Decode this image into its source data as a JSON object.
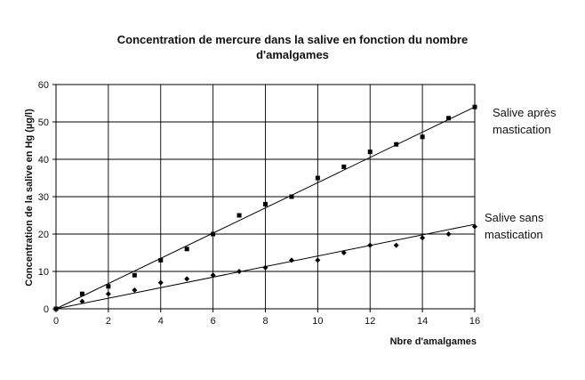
{
  "chart_data": {
    "type": "scatter",
    "title_line1": "Concentration de mercure dans la salive en fonction du nombre",
    "title_line2": "d'amalgames",
    "xlabel": "Nbre d'amalgames",
    "ylabel": "Concentration de la salive en Hg (µg/l)",
    "xlim": [
      0,
      16
    ],
    "ylim": [
      0,
      60
    ],
    "x_ticks": [
      "0",
      "2",
      "4",
      "6",
      "8",
      "10",
      "12",
      "14",
      "16"
    ],
    "y_ticks": [
      "0",
      "10",
      "20",
      "30",
      "40",
      "50",
      "60"
    ],
    "grid": true,
    "legend": "none",
    "annotations": {
      "apres_line1": "Salive après",
      "apres_line2": "mastication",
      "sans_line1": "Salive sans",
      "sans_line2": "mastication"
    },
    "series": [
      {
        "marker": "square",
        "x": [
          0,
          1,
          2,
          3,
          4,
          5,
          6,
          7,
          8,
          9,
          10,
          11,
          12,
          13,
          14,
          15,
          16
        ],
        "y": [
          0,
          4,
          6,
          9,
          13,
          16,
          20,
          25,
          28,
          30,
          35,
          38,
          42,
          44,
          46,
          51,
          54
        ],
        "trend": [
          [
            0,
            0
          ],
          [
            16,
            54
          ]
        ]
      },
      {
        "marker": "diamond",
        "x": [
          0,
          1,
          2,
          3,
          4,
          5,
          6,
          7,
          8,
          9,
          10,
          11,
          12,
          13,
          14,
          15,
          16
        ],
        "y": [
          0,
          2,
          4,
          5,
          7,
          8,
          9,
          10,
          11,
          13,
          13,
          15,
          17,
          17,
          19,
          20,
          22
        ],
        "trend": [
          [
            0,
            0
          ],
          [
            16,
            22.6
          ]
        ]
      }
    ]
  }
}
